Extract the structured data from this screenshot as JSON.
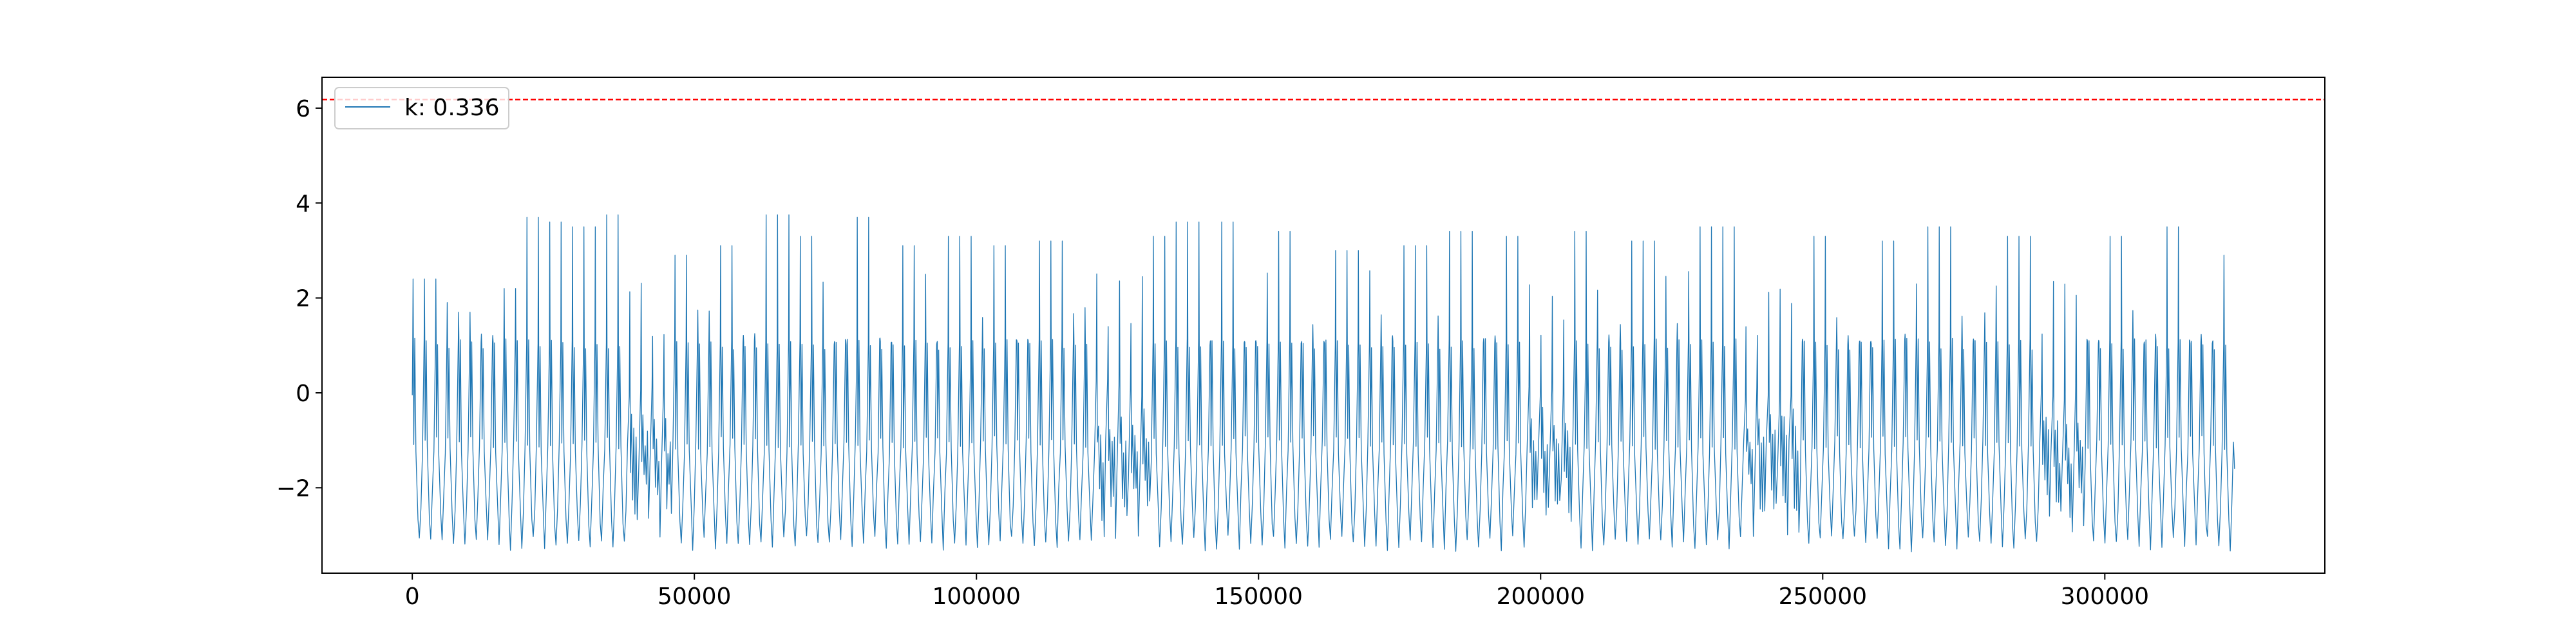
{
  "chart_data": {
    "type": "line",
    "title": "",
    "xlabel": "",
    "ylabel": "",
    "xlim": [
      -16000,
      339000
    ],
    "ylim": [
      -3.8,
      6.65
    ],
    "x_ticks": [
      0,
      50000,
      100000,
      150000,
      200000,
      250000,
      300000
    ],
    "x_tick_labels": [
      "0",
      "50000",
      "100000",
      "150000",
      "200000",
      "250000",
      "300000"
    ],
    "y_ticks": [
      -2,
      0,
      2,
      4,
      6
    ],
    "y_tick_labels": [
      "−2",
      "0",
      "2",
      "4",
      "6"
    ],
    "grid": false,
    "legend": {
      "placement": "top-left",
      "entries": [
        "k: 0.336"
      ]
    },
    "threshold": {
      "y": 6.18,
      "color": "#ff0000",
      "style": "dashed"
    },
    "series": [
      {
        "name": "k: 0.336",
        "color": "#1f77b4",
        "x_range": [
          0,
          323000
        ],
        "approx_range": [
          -3.35,
          3.75
        ],
        "num_cycles": 160,
        "spike_peaks": [
          [
            2000,
            2.4
          ],
          [
            9500,
            1.7
          ],
          [
            17000,
            2.2
          ],
          [
            21500,
            3.7
          ],
          [
            24000,
            3.6
          ],
          [
            30000,
            3.5
          ],
          [
            36000,
            3.75
          ],
          [
            40000,
            3.1
          ],
          [
            47000,
            2.9
          ],
          [
            56000,
            3.1
          ],
          [
            65000,
            3.75
          ],
          [
            70000,
            3.3
          ],
          [
            80000,
            3.7
          ],
          [
            88000,
            3.1
          ],
          [
            97000,
            3.3
          ],
          [
            104000,
            3.1
          ],
          [
            113000,
            3.2
          ],
          [
            123000,
            3.2
          ],
          [
            131000,
            3.3
          ],
          [
            137000,
            3.6
          ],
          [
            145000,
            3.6
          ],
          [
            154000,
            3.4
          ],
          [
            166000,
            3.0
          ],
          [
            178000,
            3.1
          ],
          [
            186000,
            3.4
          ],
          [
            196000,
            3.3
          ],
          [
            206000,
            3.4
          ],
          [
            218000,
            3.2
          ],
          [
            230000,
            3.5
          ],
          [
            236000,
            3.5
          ],
          [
            249000,
            3.3
          ],
          [
            262000,
            3.2
          ],
          [
            271000,
            3.5
          ],
          [
            285000,
            3.3
          ],
          [
            293000,
            3.5
          ],
          [
            302000,
            3.3
          ],
          [
            312000,
            3.5
          ],
          [
            322000,
            2.9
          ]
        ],
        "disturbed_segments": [
          [
            38000,
            47000
          ],
          [
            122000,
            132000
          ],
          [
            198000,
            205000
          ],
          [
            237000,
            247000
          ],
          [
            288000,
            296000
          ]
        ]
      }
    ]
  }
}
